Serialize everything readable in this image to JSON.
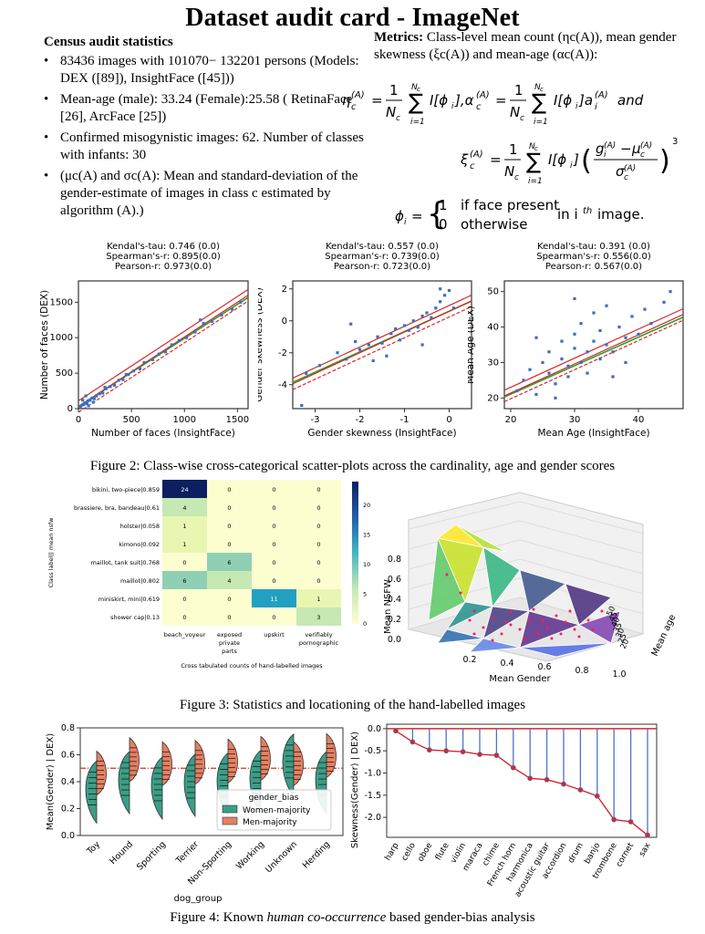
{
  "title": "Dataset audit card - ImageNet",
  "census": {
    "heading": "Census audit statistics",
    "items": [
      "83436 images with 101070− 132201 persons (Models: DEX ([89]), InsightFace ([45]))",
      "Mean-age (male): 33.24 (Female):25.58 ( RetinaFace [26], ArcFace [25])",
      "Confirmed misogynistic images: 62. Number of classes with infants: 30",
      "(μc(A) and σc(A): Mean and standard-deviation of the gender-estimate of images in class c estimated by algorithm (A).)"
    ]
  },
  "metrics": {
    "label": "Metrics:",
    "text": "Class-level mean count (ηc(A)), mean gender skewness (ξc(A)) and mean-age (αc(A)):",
    "face_present": "if face present",
    "otherwise": "otherwise",
    "in_image": "in i",
    "image": "image."
  },
  "figures": {
    "fig2": "Figure 2: Class-wise cross-categorical scatter-plots across the cardinality, age and gender scores",
    "fig3": "Figure 3: Statistics and locationing of the hand-labelled images",
    "fig4_pre": "Figure 4: Known ",
    "fig4_em": "human co-occurrence",
    "fig4_post": " based gender-bias analysis"
  },
  "chart_data": [
    {
      "type": "scatter",
      "stats": [
        "Kendal's-tau: 0.746 (0.0)",
        "Spearman's-r: 0.895(0.0)",
        "Pearson-r: 0.973(0.0)"
      ],
      "xlabel": "Number of faces (InsightFace)",
      "ylabel": "Number of faces (DEX)",
      "xlim": [
        0,
        1600
      ],
      "ylim": [
        0,
        1800
      ],
      "xticks": [
        0,
        500,
        1000,
        1500
      ],
      "yticks": [
        0,
        500,
        1000,
        1500
      ],
      "points": [
        [
          20,
          30
        ],
        [
          35,
          50
        ],
        [
          50,
          60
        ],
        [
          60,
          80
        ],
        [
          80,
          70
        ],
        [
          90,
          110
        ],
        [
          110,
          120
        ],
        [
          130,
          150
        ],
        [
          150,
          140
        ],
        [
          170,
          180
        ],
        [
          200,
          210
        ],
        [
          230,
          220
        ],
        [
          260,
          280
        ],
        [
          300,
          310
        ],
        [
          340,
          330
        ],
        [
          380,
          400
        ],
        [
          420,
          410
        ],
        [
          470,
          480
        ],
        [
          520,
          530
        ],
        [
          580,
          560
        ],
        [
          620,
          650
        ],
        [
          700,
          690
        ],
        [
          760,
          770
        ],
        [
          820,
          800
        ],
        [
          880,
          900
        ],
        [
          950,
          960
        ],
        [
          1020,
          1000
        ],
        [
          1100,
          1080
        ],
        [
          1180,
          1200
        ],
        [
          1260,
          1230
        ],
        [
          1350,
          1320
        ],
        [
          1450,
          1400
        ],
        [
          1530,
          1500
        ],
        [
          70,
          180
        ],
        [
          95,
          40
        ],
        [
          40,
          120
        ],
        [
          140,
          90
        ],
        [
          250,
          300
        ],
        [
          450,
          480
        ],
        [
          1150,
          1250
        ]
      ],
      "fit": {
        "slope": 0.98,
        "intercept": 30
      }
    },
    {
      "type": "scatter",
      "stats": [
        "Kendal's-tau: 0.557 (0.0)",
        "Spearman's-r: 0.739(0.0)",
        "Pearson-r: 0.723(0.0)"
      ],
      "xlabel": "Gender skewness (InsightFace)",
      "ylabel": "Gender skewness (DEX)",
      "xlim": [
        -3.5,
        0.5
      ],
      "ylim": [
        -5.5,
        2.5
      ],
      "xticks": [
        -3,
        -2,
        -1,
        0
      ],
      "yticks": [
        -4,
        -2,
        0,
        2
      ],
      "points": [
        [
          -3.3,
          -5.3
        ],
        [
          -3.2,
          -3.3
        ],
        [
          -2.9,
          -2.8
        ],
        [
          -2.5,
          -2.0
        ],
        [
          -2.3,
          -2.4
        ],
        [
          -2.1,
          -1.3
        ],
        [
          -2.0,
          -1.8
        ],
        [
          -1.8,
          -1.5
        ],
        [
          -1.6,
          -1.0
        ],
        [
          -1.5,
          -1.4
        ],
        [
          -1.3,
          -0.8
        ],
        [
          -1.2,
          -0.5
        ],
        [
          -1.1,
          -1.2
        ],
        [
          -1.0,
          -0.3
        ],
        [
          -0.9,
          -0.6
        ],
        [
          -0.8,
          0.0
        ],
        [
          -0.7,
          -0.4
        ],
        [
          -0.6,
          0.3
        ],
        [
          -0.5,
          0.5
        ],
        [
          -0.4,
          0.2
        ],
        [
          -0.3,
          0.8
        ],
        [
          -0.2,
          1.2
        ],
        [
          -0.1,
          1.6
        ],
        [
          0.0,
          1.9
        ],
        [
          0.1,
          0.8
        ],
        [
          -1.4,
          -2.2
        ],
        [
          -1.7,
          -2.5
        ],
        [
          -0.6,
          -1.5
        ],
        [
          -2.2,
          -0.2
        ],
        [
          -0.2,
          2.0
        ]
      ],
      "fit": {
        "slope": 1.3,
        "intercept": 0.6
      }
    },
    {
      "type": "scatter",
      "stats": [
        "Kendal's-tau: 0.391 (0.0)",
        "Spearman's-r: 0.556(0.0)",
        "Pearson-r: 0.567(0.0)"
      ],
      "xlabel": "Mean Age (InsightFace)",
      "ylabel": "Mean Age (DEX)",
      "xlim": [
        19,
        47
      ],
      "ylim": [
        17,
        53
      ],
      "xticks": [
        20,
        30,
        40
      ],
      "yticks": [
        20,
        30,
        40,
        50
      ],
      "points": [
        [
          21,
          22
        ],
        [
          22,
          25
        ],
        [
          23,
          28
        ],
        [
          24,
          21
        ],
        [
          25,
          30
        ],
        [
          26,
          27
        ],
        [
          26,
          33
        ],
        [
          27,
          24
        ],
        [
          28,
          31
        ],
        [
          28,
          36
        ],
        [
          29,
          29
        ],
        [
          29,
          26
        ],
        [
          30,
          34
        ],
        [
          30,
          38
        ],
        [
          31,
          30
        ],
        [
          31,
          41
        ],
        [
          32,
          33
        ],
        [
          32,
          27
        ],
        [
          33,
          36
        ],
        [
          33,
          44
        ],
        [
          34,
          31
        ],
        [
          34,
          39
        ],
        [
          35,
          35
        ],
        [
          35,
          46
        ],
        [
          36,
          33
        ],
        [
          37,
          40
        ],
        [
          38,
          37
        ],
        [
          39,
          43
        ],
        [
          40,
          38
        ],
        [
          41,
          45
        ],
        [
          42,
          41
        ],
        [
          44,
          47
        ],
        [
          45,
          50
        ],
        [
          27,
          20
        ],
        [
          30,
          48
        ],
        [
          24,
          37
        ],
        [
          36,
          26
        ],
        [
          38,
          30
        ]
      ],
      "fit": {
        "slope": 0.82,
        "intercept": 5
      }
    },
    {
      "type": "heatmap",
      "rows": [
        "bikini, two-piece|0.859",
        "brassiere, bra, bandeau|0.61",
        "holster|0.058",
        "kimono|0.092",
        "maillot, tank suit|0.768",
        "maillot|0.802",
        "miniskirt, mini|0.619",
        "shower cap|0.13"
      ],
      "cols": [
        "beach_voyeur",
        "exposed\nprivate\nparts",
        "upskirt",
        "verifiably\npornographic"
      ],
      "values": [
        [
          24,
          0,
          0,
          0
        ],
        [
          4,
          0,
          0,
          0
        ],
        [
          1,
          0,
          0,
          0
        ],
        [
          1,
          0,
          0,
          0
        ],
        [
          0,
          6,
          0,
          0
        ],
        [
          6,
          4,
          0,
          0
        ],
        [
          0,
          0,
          11,
          1
        ],
        [
          0,
          0,
          0,
          3
        ]
      ],
      "ylabel": "Class label|| mean nsfw",
      "xlabel": "Cross tabulated counts of hand-labelled images",
      "colorbar_ticks": [
        0,
        5,
        10,
        15,
        20
      ]
    },
    {
      "type": "surface3d",
      "xlabel": "Mean Gender",
      "ylabel": "Mean age",
      "zlabel": "Mean NSFW",
      "xticks": [
        "0.2",
        "0.4",
        "0.6",
        "0.8",
        "1.0"
      ],
      "zticks": [
        "0.0",
        "0.2",
        "0.4",
        "0.6",
        "0.8"
      ],
      "yticks": [
        "20",
        "25",
        "30",
        "35",
        "40",
        "45",
        "50"
      ]
    },
    {
      "type": "violin",
      "categories": [
        "Toy",
        "Hound",
        "Sporting",
        "Terrier",
        "Non-Sporting",
        "Working",
        "Unknown",
        "Herding"
      ],
      "women_median": [
        0.35,
        0.42,
        0.38,
        0.4,
        0.41,
        0.43,
        0.55,
        0.42
      ],
      "men_median": [
        0.45,
        0.55,
        0.52,
        0.53,
        0.54,
        0.56,
        0.52,
        0.58
      ],
      "ylim": [
        0,
        0.8
      ],
      "yticks": [
        "0.0",
        "0.2",
        "0.4",
        "0.6",
        "0.8"
      ],
      "ylabel": "Mean(Gender) | DEX)",
      "xlabel": "dog_group",
      "legend_title": "gender_bias",
      "series": [
        {
          "name": "Women-majority",
          "color": "#3c9d86"
        },
        {
          "name": "Men-majority",
          "color": "#e58062"
        }
      ],
      "ref_line": 0.5
    },
    {
      "type": "lollipop",
      "categories": [
        "harp",
        "cello",
        "oboe",
        "flute",
        "violin",
        "maraca",
        "chime",
        "French horn",
        "harmonica",
        "acoustic guitar",
        "accordion",
        "drum",
        "banjo",
        "trombone",
        "cornet",
        "sax"
      ],
      "values": [
        -0.05,
        -0.3,
        -0.48,
        -0.5,
        -0.52,
        -0.58,
        -0.6,
        -0.88,
        -1.12,
        -1.15,
        -1.25,
        -1.38,
        -1.52,
        -2.05,
        -2.1,
        -2.4
      ],
      "ylim": [
        -2.45,
        0.1
      ],
      "yticks": [
        "0.0",
        "-0.5",
        "-1.0",
        "-1.5",
        "-2.0"
      ],
      "ylabel": "Skewness(Gender) | DEX)"
    }
  ]
}
